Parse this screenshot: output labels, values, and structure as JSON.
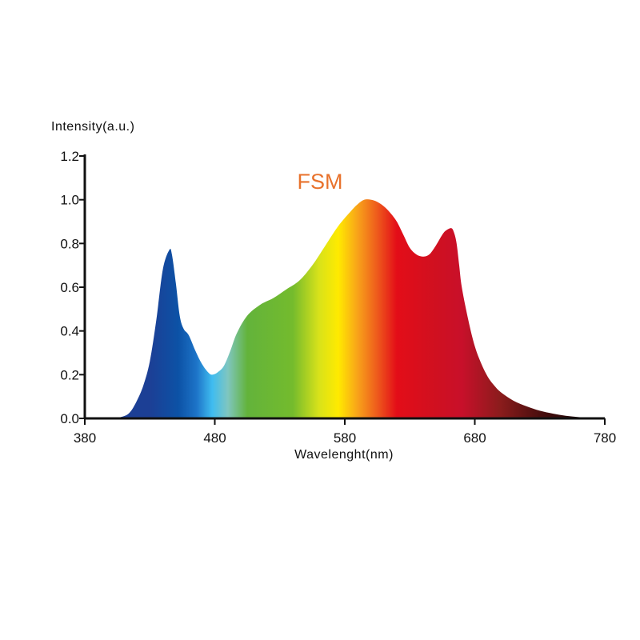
{
  "chart_data": {
    "type": "area",
    "title": "FSM",
    "title_color": "#e8722c",
    "xlabel": "Wavelenght(nm)",
    "ylabel": "Intensity(a.u.)",
    "xlim": [
      380,
      780
    ],
    "ylim": [
      0,
      1.2
    ],
    "x_ticks": [
      380,
      480,
      580,
      680,
      780
    ],
    "y_ticks": [
      "0.0",
      "0.2",
      "0.4",
      "0.6",
      "0.8",
      "1.0",
      "1.2"
    ],
    "grid": false,
    "x": [
      380,
      400,
      410,
      415,
      420,
      425,
      430,
      435,
      440,
      445,
      447,
      450,
      453,
      456,
      460,
      465,
      470,
      475,
      478,
      482,
      487,
      492,
      497,
      505,
      515,
      525,
      535,
      545,
      555,
      565,
      575,
      585,
      590,
      595,
      600,
      605,
      610,
      615,
      620,
      625,
      630,
      635,
      640,
      645,
      650,
      655,
      658,
      662,
      664,
      666,
      668,
      670,
      675,
      680,
      685,
      690,
      695,
      700,
      710,
      720,
      730,
      740,
      750,
      760,
      770,
      780
    ],
    "y": [
      0.0,
      0.0,
      0.01,
      0.03,
      0.08,
      0.15,
      0.26,
      0.45,
      0.68,
      0.77,
      0.75,
      0.62,
      0.47,
      0.41,
      0.38,
      0.31,
      0.25,
      0.21,
      0.2,
      0.21,
      0.24,
      0.31,
      0.39,
      0.47,
      0.52,
      0.55,
      0.59,
      0.63,
      0.7,
      0.79,
      0.88,
      0.95,
      0.98,
      1.0,
      1.0,
      0.99,
      0.97,
      0.94,
      0.9,
      0.84,
      0.78,
      0.75,
      0.74,
      0.75,
      0.79,
      0.84,
      0.86,
      0.87,
      0.85,
      0.8,
      0.7,
      0.6,
      0.45,
      0.33,
      0.25,
      0.19,
      0.15,
      0.12,
      0.08,
      0.055,
      0.035,
      0.022,
      0.012,
      0.006,
      0.002,
      0.0
    ],
    "spectrum_colors": [
      {
        "nm": 430,
        "color": "#1c3f95"
      },
      {
        "nm": 452,
        "color": "#0c52a6"
      },
      {
        "nm": 466,
        "color": "#1d74c8"
      },
      {
        "nm": 478,
        "color": "#3fbcf0"
      },
      {
        "nm": 490,
        "color": "#7fc6c0"
      },
      {
        "nm": 505,
        "color": "#63b33b"
      },
      {
        "nm": 540,
        "color": "#74bb2d"
      },
      {
        "nm": 560,
        "color": "#d8e21a"
      },
      {
        "nm": 575,
        "color": "#ffea00"
      },
      {
        "nm": 590,
        "color": "#f8a21a"
      },
      {
        "nm": 605,
        "color": "#ee5a1c"
      },
      {
        "nm": 620,
        "color": "#e30d18"
      },
      {
        "nm": 650,
        "color": "#d01020"
      },
      {
        "nm": 670,
        "color": "#c8102a"
      },
      {
        "nm": 700,
        "color": "#8a1c1c"
      },
      {
        "nm": 730,
        "color": "#4a0e0e"
      },
      {
        "nm": 760,
        "color": "#1e0505"
      }
    ],
    "axis_color": "#111111"
  }
}
